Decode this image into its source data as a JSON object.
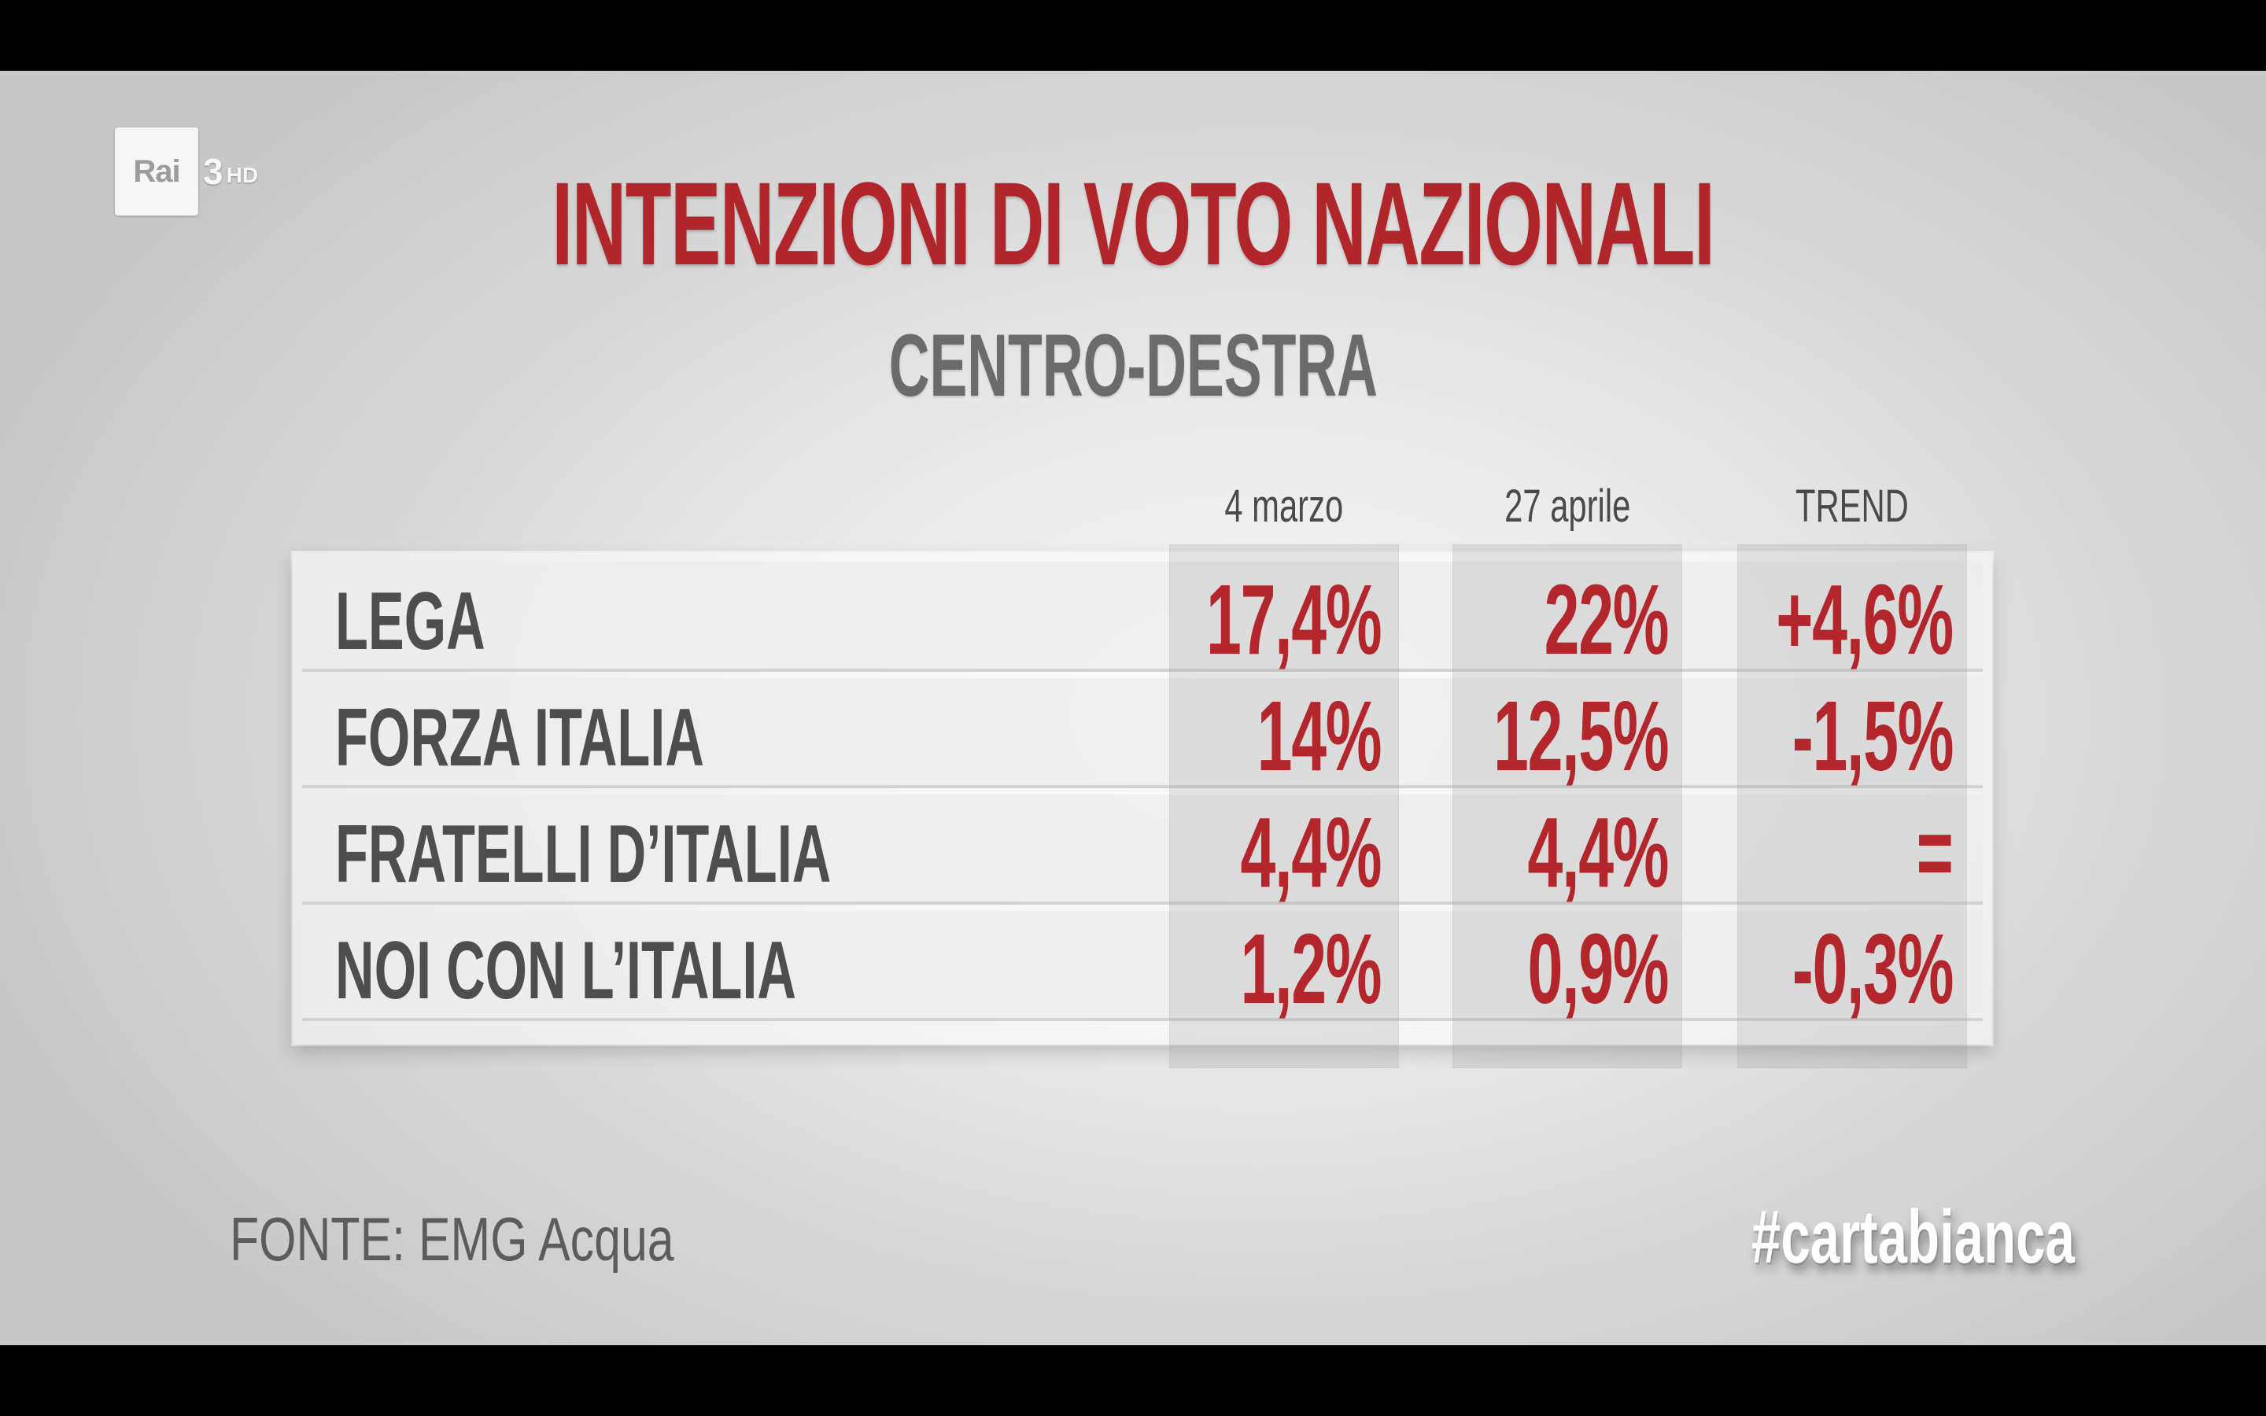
{
  "channel_logo": {
    "brand": "Rai",
    "channel": "3",
    "quality": "HD"
  },
  "title": "INTENZIONI DI VOTO NAZIONALI",
  "subtitle": "CENTRO-DESTRA",
  "chart_data": {
    "type": "table",
    "title": "INTENZIONI DI VOTO NAZIONALI",
    "subtitle": "CENTRO-DESTRA",
    "columns": [
      "4 marzo",
      "27 aprile",
      "TREND"
    ],
    "rows": [
      {
        "party": "LEGA",
        "values": [
          "17,4%",
          "22%",
          "+4,6%"
        ],
        "numeric": [
          17.4,
          22,
          4.6
        ]
      },
      {
        "party": "FORZA ITALIA",
        "values": [
          "14%",
          "12,5%",
          "-1,5%"
        ],
        "numeric": [
          14,
          12.5,
          -1.5
        ]
      },
      {
        "party": "FRATELLI D’ITALIA",
        "values": [
          "4,4%",
          "4,4%",
          "="
        ],
        "numeric": [
          4.4,
          4.4,
          0
        ]
      },
      {
        "party": "NOI CON L’ITALIA",
        "values": [
          "1,2%",
          "0,9%",
          "-0,3%"
        ],
        "numeric": [
          1.2,
          0.9,
          -0.3
        ]
      }
    ],
    "value_color": "#b3262b",
    "label_color": "#4e4e4e"
  },
  "source": "FONTE: EMG Acqua",
  "hashtag": "#cartabianca"
}
